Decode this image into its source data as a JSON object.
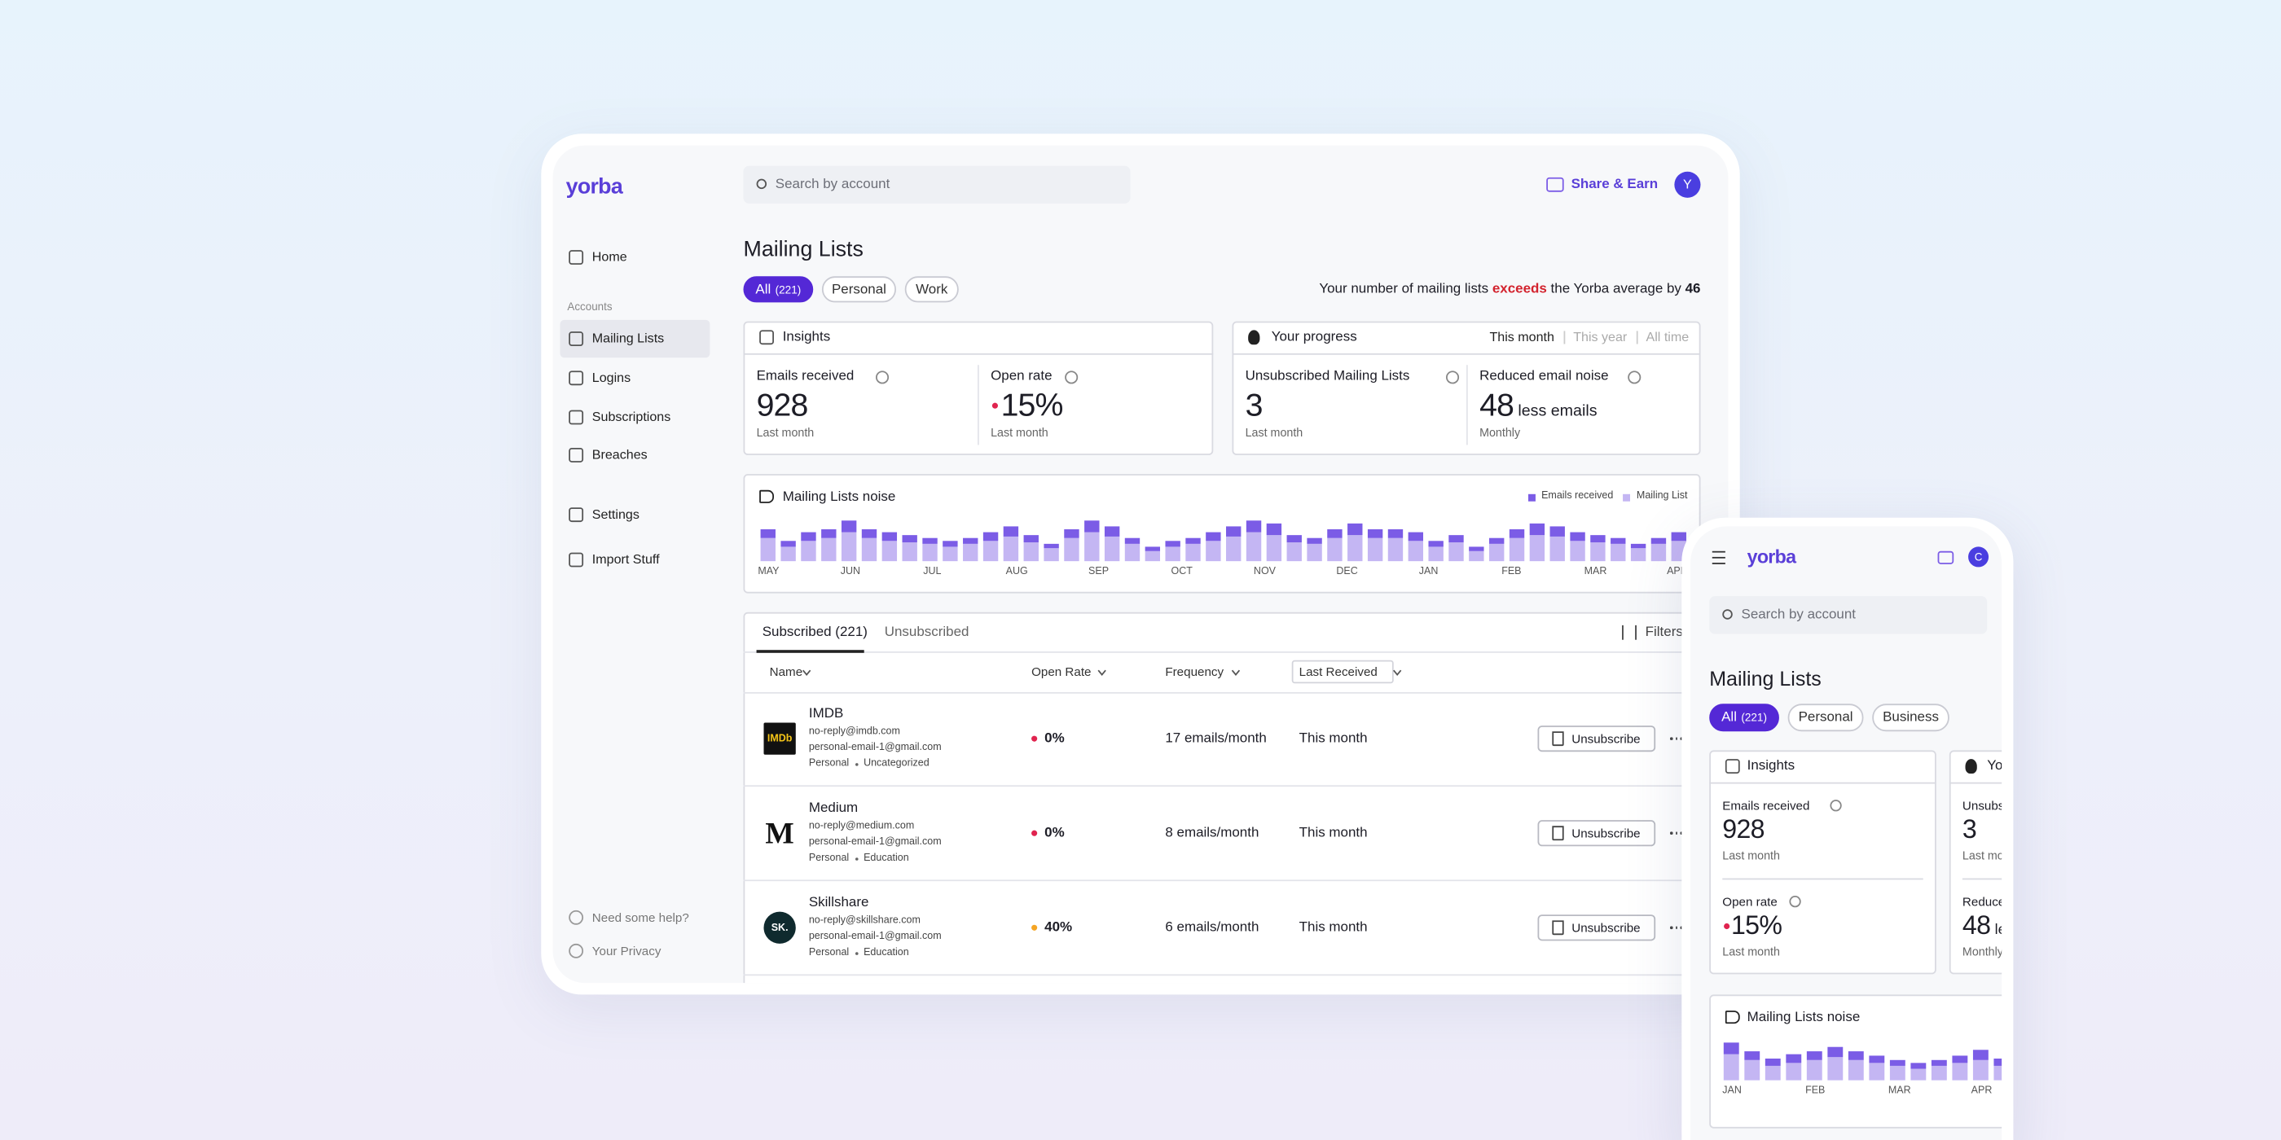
{
  "desktop": {
    "logo": "yorba",
    "search": "Search by account",
    "share": "Share & Earn",
    "avatar": "Y",
    "nav": [
      "Home"
    ],
    "accounts_label": "Accounts",
    "accounts_nav": [
      "Mailing Lists",
      "Logins",
      "Subscriptions",
      "Breaches"
    ],
    "settings_nav": [
      "Settings",
      "Import Stuff"
    ],
    "footer_nav": [
      "Need some help?",
      "Your Privacy"
    ],
    "title": "Mailing Lists",
    "filters": [
      {
        "label": "All",
        "count": "(221)"
      },
      {
        "label": "Personal"
      },
      {
        "label": "Work"
      }
    ],
    "average_note": {
      "before": "Your number of mailing lists",
      "highlight": "exceeds",
      "after": "the Yorba average by",
      "value": 46
    },
    "insights": {
      "title": "Insights",
      "metrics": [
        {
          "label": "Emails received",
          "value": 928,
          "caption": "Last month"
        },
        {
          "label": "Open rate",
          "value": "15%",
          "caption": "Last month"
        }
      ]
    },
    "progress": {
      "title": "Your progress",
      "periods": [
        "This month",
        "This year",
        "All time"
      ],
      "metrics": [
        {
          "label": "Unsubscribed Mailing Lists",
          "value": 3,
          "caption": "Last month"
        },
        {
          "label": "Reduced email noise",
          "value": 48,
          "unit": "less emails",
          "caption": "Monthly"
        }
      ]
    },
    "noise": {
      "title": "Mailing Lists noise",
      "months": [
        "MAY",
        "JUN",
        "JUL",
        "AUG",
        "SEP",
        "OCT",
        "NOV",
        "DEC",
        "JAN",
        "FEB",
        "MAR",
        "APR"
      ],
      "series": [
        {
          "name": "Emails received",
          "color": "#7b5ce6",
          "values": [
            6,
            4,
            6,
            6,
            8,
            6,
            6,
            5,
            4,
            4,
            4,
            6,
            7,
            5,
            3,
            6,
            8,
            7,
            4,
            3,
            4,
            4,
            6,
            7,
            8,
            8,
            5,
            4,
            6,
            8,
            6,
            6,
            6,
            4,
            5,
            3,
            4,
            6,
            8,
            7,
            6,
            5,
            4,
            3,
            4,
            6
          ]
        },
        {
          "name": "Mailing List",
          "color": "#c4b6f3",
          "values": [
            16,
            10,
            14,
            16,
            20,
            16,
            14,
            13,
            12,
            10,
            12,
            14,
            17,
            13,
            9,
            16,
            20,
            17,
            12,
            7,
            10,
            12,
            14,
            17,
            20,
            18,
            13,
            12,
            16,
            18,
            16,
            16,
            14,
            10,
            13,
            7,
            12,
            16,
            18,
            17,
            14,
            13,
            12,
            9,
            12,
            14
          ]
        }
      ]
    },
    "table": {
      "tabs": [
        "Subscribed (221)",
        "Unsubscribed"
      ],
      "filters": "Filters",
      "columns": [
        "Name",
        "Open Rate",
        "Frequency",
        "Last Received"
      ],
      "rows": [
        {
          "logo": "IMDb",
          "logo_color": "#111111",
          "name": "IMDB",
          "emails": [
            "no-reply@imdb.com",
            "personal-email-1@gmail.com"
          ],
          "tags": [
            "Personal",
            "Uncategorized"
          ],
          "open_rate": "0%",
          "rate_color": "#e0244f",
          "frequency": "17 emails/month",
          "last_received": "This month",
          "action": "Unsubscribe"
        },
        {
          "logo": "M",
          "logo_color": "#ffffff",
          "name": "Medium",
          "emails": [
            "no-reply@medium.com",
            "personal-email-1@gmail.com"
          ],
          "tags": [
            "Personal",
            "Education"
          ],
          "open_rate": "0%",
          "rate_color": "#e0244f",
          "frequency": "8 emails/month",
          "last_received": "This month",
          "action": "Unsubscribe"
        },
        {
          "logo": "SK.",
          "logo_color": "#0f2a2e",
          "name": "Skillshare",
          "emails": [
            "no-reply@skillshare.com",
            "personal-email-1@gmail.com"
          ],
          "tags": [
            "Personal",
            "Education"
          ],
          "open_rate": "40%",
          "rate_color": "#f5a524",
          "frequency": "6 emails/month",
          "last_received": "This month",
          "action": "Unsubscribe"
        }
      ]
    }
  },
  "mobile": {
    "logo": "yorba",
    "avatar": "C",
    "search": "Search by account",
    "title": "Mailing Lists",
    "filters": [
      {
        "label": "All",
        "count": "(221)"
      },
      {
        "label": "Personal"
      },
      {
        "label": "Business"
      }
    ],
    "insights": {
      "title": "Insights",
      "metrics": [
        {
          "label": "Emails received",
          "value": 928,
          "caption": "Last month"
        },
        {
          "label": "Open rate",
          "value": "15%",
          "caption": "Last month"
        }
      ]
    },
    "progress": {
      "title": "Your progress",
      "metrics": [
        {
          "label": "Unsubscribed Mailing Lists",
          "value": 3,
          "caption": "Last month"
        },
        {
          "label": "Reduced email noise",
          "value": 48,
          "unit": "less emails",
          "caption": "Monthly"
        }
      ]
    },
    "noise": {
      "title": "Mailing Lists noise",
      "months": [
        "JAN",
        "FEB",
        "MAR",
        "APR"
      ],
      "series": [
        {
          "color": "#7b5ce6",
          "values": [
            8,
            6,
            5,
            6,
            6,
            7,
            6,
            5,
            4,
            4,
            4,
            5,
            7,
            5
          ]
        },
        {
          "color": "#c4b6f3",
          "values": [
            18,
            14,
            10,
            12,
            14,
            16,
            14,
            12,
            10,
            8,
            10,
            12,
            14,
            10
          ]
        }
      ]
    }
  }
}
